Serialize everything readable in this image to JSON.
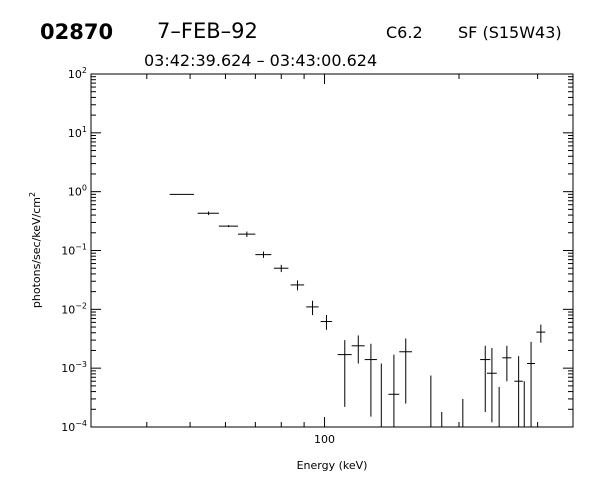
{
  "header": {
    "event_id": "02870",
    "date": "7–FEB–92",
    "goes_class": "C6.2",
    "flare_info": "SF (S15W43)",
    "time_range": "03:42:39.624 – 03:43:00.624"
  },
  "chart_data": {
    "type": "scatter",
    "title": "",
    "xlabel": "Energy (keV)",
    "ylabel_parts": {
      "base": "photons/sec/keV/cm",
      "exp": "2"
    },
    "x_scale": "log",
    "y_scale": "log",
    "xlim": [
      30,
      360
    ],
    "ylim": [
      0.0001,
      100
    ],
    "x_tick_label": "100",
    "y_ticks": [
      {
        "base": "10",
        "exp": "2",
        "value": 100
      },
      {
        "base": "10",
        "exp": "1",
        "value": 10
      },
      {
        "base": "10",
        "exp": "0",
        "value": 1
      },
      {
        "base": "10",
        "exp": "−1",
        "value": 0.1
      },
      {
        "base": "10",
        "exp": "−2",
        "value": 0.01
      },
      {
        "base": "10",
        "exp": "−3",
        "value": 0.001
      },
      {
        "base": "10",
        "exp": "−4",
        "value": 0.0001
      }
    ],
    "grid": false,
    "points": [
      {
        "x": 48,
        "xlo": 45,
        "xhi": 51,
        "y": 0.9,
        "ylo": 0.9,
        "yhi": 0.9
      },
      {
        "x": 55,
        "xlo": 52,
        "xhi": 58,
        "y": 0.43,
        "ylo": 0.4,
        "yhi": 0.46
      },
      {
        "x": 61,
        "xlo": 58,
        "xhi": 64,
        "y": 0.26,
        "ylo": 0.25,
        "yhi": 0.27
      },
      {
        "x": 67,
        "xlo": 64,
        "xhi": 70,
        "y": 0.19,
        "ylo": 0.17,
        "yhi": 0.21
      },
      {
        "x": 73,
        "xlo": 70,
        "xhi": 76,
        "y": 0.085,
        "ylo": 0.075,
        "yhi": 0.096
      },
      {
        "x": 80,
        "xlo": 77,
        "xhi": 83,
        "y": 0.05,
        "ylo": 0.043,
        "yhi": 0.057
      },
      {
        "x": 87,
        "xlo": 84,
        "xhi": 90,
        "y": 0.026,
        "ylo": 0.021,
        "yhi": 0.031
      },
      {
        "x": 94,
        "xlo": 91,
        "xhi": 97,
        "y": 0.011,
        "ylo": 0.008,
        "yhi": 0.014
      },
      {
        "x": 101,
        "xlo": 98,
        "xhi": 104,
        "y": 0.0062,
        "ylo": 0.0045,
        "yhi": 0.008
      },
      {
        "x": 111,
        "xlo": 107,
        "xhi": 115,
        "y": 0.0017,
        "ylo": 0.00022,
        "yhi": 0.003
      },
      {
        "x": 119,
        "xlo": 115,
        "xhi": 123,
        "y": 0.0024,
        "ylo": 0.0012,
        "yhi": 0.0036
      },
      {
        "x": 127,
        "xlo": 123,
        "xhi": 131,
        "y": 0.0014,
        "ylo": 0.00015,
        "yhi": 0.0026
      },
      {
        "x": 134,
        "xlo": null,
        "xhi": null,
        "y": null,
        "ylo": 0.0001,
        "yhi": 0.0012
      },
      {
        "x": 143,
        "xlo": 139,
        "xhi": 147,
        "y": 0.00036,
        "ylo": 0.0001,
        "yhi": 0.0017
      },
      {
        "x": 152,
        "xlo": 147,
        "xhi": 157,
        "y": 0.0019,
        "ylo": 0.00025,
        "yhi": 0.0032
      },
      {
        "x": 173,
        "xlo": null,
        "xhi": null,
        "y": null,
        "ylo": 0.0001,
        "yhi": 0.00075
      },
      {
        "x": 183,
        "xlo": null,
        "xhi": null,
        "y": null,
        "ylo": 0.0001,
        "yhi": 0.00018
      },
      {
        "x": 204,
        "xlo": null,
        "xhi": null,
        "y": null,
        "ylo": 0.0001,
        "yhi": 0.0003
      },
      {
        "x": 229,
        "xlo": 223,
        "xhi": 235,
        "y": 0.0014,
        "ylo": 0.00018,
        "yhi": 0.0024
      },
      {
        "x": 237,
        "xlo": 231,
        "xhi": 243,
        "y": 0.00082,
        "ylo": 0.00012,
        "yhi": 0.0022
      },
      {
        "x": 246,
        "xlo": null,
        "xhi": null,
        "y": null,
        "ylo": 0.0001,
        "yhi": 0.00048
      },
      {
        "x": 256,
        "xlo": 250,
        "xhi": 262,
        "y": 0.0015,
        "ylo": 0.0006,
        "yhi": 0.0024
      },
      {
        "x": 272,
        "xlo": 266,
        "xhi": 278,
        "y": 0.0006,
        "ylo": 0.0001,
        "yhi": 0.0016
      },
      {
        "x": 280,
        "xlo": null,
        "xhi": null,
        "y": null,
        "ylo": 0.0001,
        "yhi": 0.0006
      },
      {
        "x": 290,
        "xlo": 284,
        "xhi": 296,
        "y": 0.0012,
        "ylo": 0.0001,
        "yhi": 0.0028
      },
      {
        "x": 305,
        "xlo": 298,
        "xhi": 312,
        "y": 0.0041,
        "ylo": 0.0027,
        "yhi": 0.0055
      }
    ]
  }
}
